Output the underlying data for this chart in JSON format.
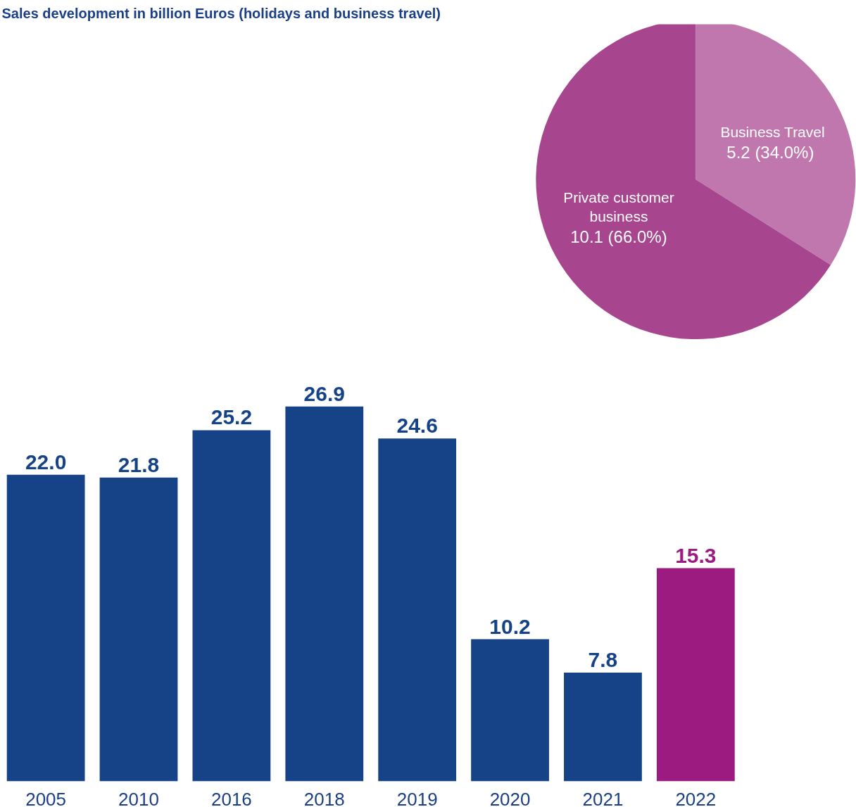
{
  "chart_data": [
    {
      "type": "bar",
      "title": "Sales development in billion Euros (holidays and business travel)",
      "categories": [
        "2005",
        "2010",
        "2016",
        "2018",
        "2019",
        "2020",
        "2021",
        "2022"
      ],
      "values": [
        22.0,
        21.8,
        25.2,
        26.9,
        24.6,
        10.2,
        7.8,
        15.3
      ],
      "colors": [
        "#164388",
        "#164388",
        "#164388",
        "#164388",
        "#164388",
        "#164388",
        "#164388",
        "#9b1b81"
      ],
      "value_labels": [
        "22.0",
        "21.8",
        "25.2",
        "26.9",
        "24.6",
        "10.2",
        "7.8",
        "15.3"
      ],
      "grid": false
    },
    {
      "type": "pie",
      "categories": [
        "Business Travel",
        "Private customer business"
      ],
      "values": [
        5.2,
        10.1
      ],
      "colors": [
        "#c077ae",
        "#a8458f"
      ],
      "value_labels": [
        "5.2  (34.0%)",
        "10.1 (66.0%)"
      ]
    }
  ]
}
